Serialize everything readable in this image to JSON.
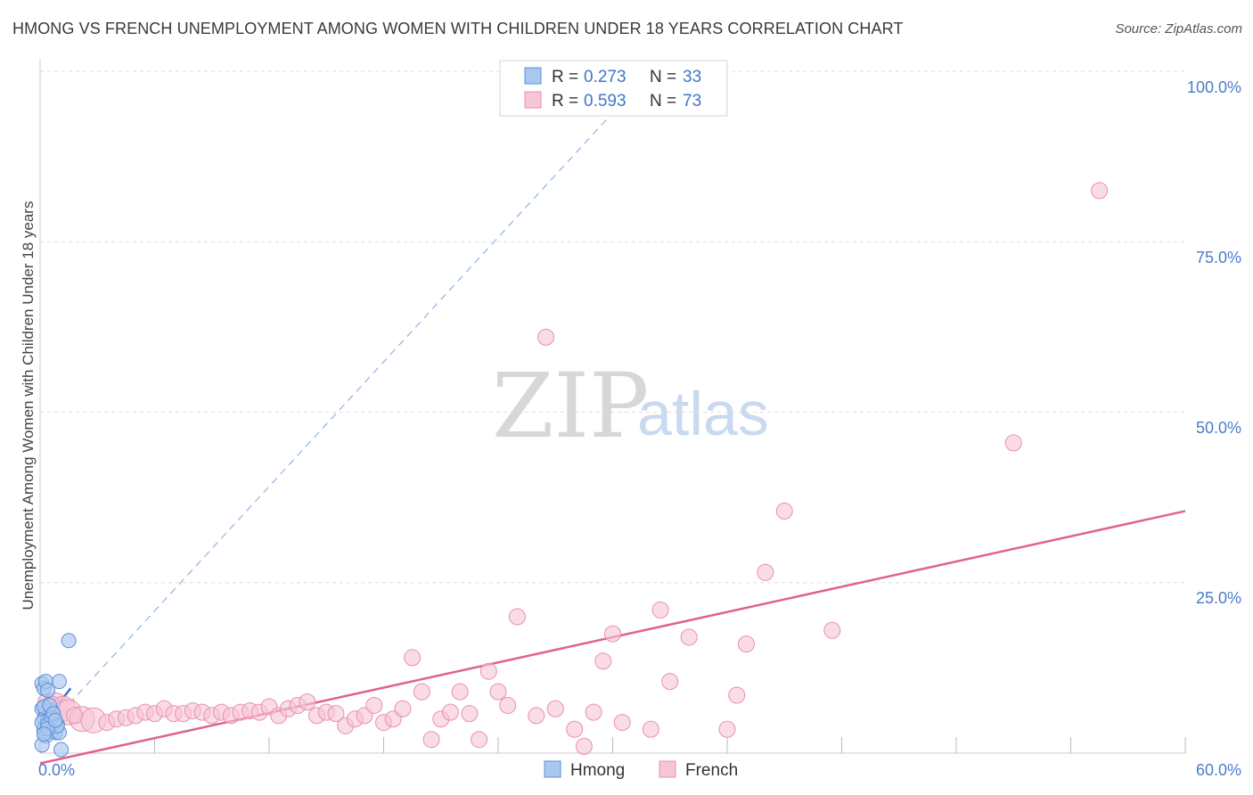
{
  "title": "HMONG VS FRENCH UNEMPLOYMENT AMONG WOMEN WITH CHILDREN UNDER 18 YEARS CORRELATION CHART",
  "source": "Source: ZipAtlas.com",
  "watermark": {
    "zip": "ZIP",
    "atlas": "atlas"
  },
  "legend": {
    "r_label": "R =",
    "n_label": "N =",
    "rows": [
      {
        "series": "Hmong",
        "r": "0.273",
        "n": "33"
      },
      {
        "series": "French",
        "r": "0.593",
        "n": "73"
      }
    ]
  },
  "colors": {
    "hmong_fill": "#a9c8f0",
    "hmong_stroke": "#5b8fd6",
    "hmong_line": "#4a72c8",
    "french_fill": "#f7c5d5",
    "french_stroke": "#e890ae",
    "french_line": "#e0628c",
    "grid": "#dddddd",
    "tick_text": "#4a7cc9"
  },
  "chart_data": {
    "type": "scatter",
    "title": "HMONG VS FRENCH UNEMPLOYMENT AMONG WOMEN WITH CHILDREN UNDER 18 YEARS CORRELATION CHART",
    "xlabel": "",
    "ylabel": "Unemployment Among Women with Children Under 18 years",
    "xlim": [
      0,
      60
    ],
    "ylim": [
      0,
      100
    ],
    "x_tick_labels": [
      "0.0%",
      "60.0%"
    ],
    "y_tick_labels": [
      "100.0%",
      "75.0%",
      "50.0%",
      "25.0%"
    ],
    "y_ticks": [
      100,
      75,
      50,
      25
    ],
    "grid": true,
    "series": [
      {
        "name": "Hmong",
        "r": 0.273,
        "n": 33,
        "trend_solid": [
          [
            0.2,
            4.5
          ],
          [
            1.6,
            9.5
          ]
        ],
        "trend_dashed": [
          [
            0.2,
            3.2
          ],
          [
            32.0,
            100.0
          ]
        ],
        "points": [
          [
            0.1,
            10.2
          ],
          [
            0.2,
            9.5
          ],
          [
            0.3,
            10.5
          ],
          [
            0.4,
            9.2
          ],
          [
            1.0,
            10.5
          ],
          [
            1.5,
            16.5
          ],
          [
            0.1,
            6.5
          ],
          [
            0.3,
            6.0
          ],
          [
            0.5,
            5.5
          ],
          [
            0.6,
            6.2
          ],
          [
            0.2,
            5.0
          ],
          [
            0.4,
            4.8
          ],
          [
            0.7,
            4.5
          ],
          [
            0.9,
            4.2
          ],
          [
            0.3,
            4.0
          ],
          [
            0.5,
            3.8
          ],
          [
            0.2,
            3.5
          ],
          [
            0.6,
            3.2
          ],
          [
            0.8,
            3.0
          ],
          [
            1.0,
            3.0
          ],
          [
            0.1,
            4.5
          ],
          [
            0.4,
            4.2
          ],
          [
            0.6,
            5.2
          ],
          [
            0.9,
            4.0
          ],
          [
            0.3,
            2.5
          ],
          [
            0.1,
            1.2
          ],
          [
            1.1,
            0.5
          ],
          [
            0.2,
            6.8
          ],
          [
            0.5,
            7.0
          ],
          [
            0.7,
            5.8
          ],
          [
            0.4,
            3.6
          ],
          [
            0.2,
            2.8
          ],
          [
            0.8,
            4.8
          ]
        ]
      },
      {
        "name": "French",
        "r": 0.593,
        "n": 73,
        "trend": [
          [
            0.0,
            -1.5
          ],
          [
            60.0,
            35.5
          ]
        ],
        "points": [
          [
            0.3,
            7.5
          ],
          [
            0.8,
            7.0
          ],
          [
            1.2,
            6.5
          ],
          [
            1.5,
            6.0
          ],
          [
            2.2,
            5.0
          ],
          [
            2.8,
            4.8
          ],
          [
            3.5,
            4.5
          ],
          [
            4.0,
            5.0
          ],
          [
            4.5,
            5.2
          ],
          [
            5.0,
            5.5
          ],
          [
            5.5,
            6.0
          ],
          [
            6.0,
            5.8
          ],
          [
            6.5,
            6.5
          ],
          [
            7.0,
            5.8
          ],
          [
            7.5,
            5.8
          ],
          [
            8.0,
            6.2
          ],
          [
            8.5,
            6.0
          ],
          [
            9.0,
            5.5
          ],
          [
            9.5,
            6.0
          ],
          [
            10.0,
            5.5
          ],
          [
            10.5,
            6.0
          ],
          [
            11.0,
            6.2
          ],
          [
            11.5,
            6.0
          ],
          [
            12.0,
            6.8
          ],
          [
            12.5,
            5.5
          ],
          [
            13.0,
            6.5
          ],
          [
            13.5,
            7.0
          ],
          [
            14.0,
            7.5
          ],
          [
            14.5,
            5.5
          ],
          [
            15.0,
            6.0
          ],
          [
            15.5,
            5.8
          ],
          [
            16.0,
            4.0
          ],
          [
            16.5,
            5.0
          ],
          [
            17.0,
            5.5
          ],
          [
            17.5,
            7.0
          ],
          [
            18.0,
            4.5
          ],
          [
            18.5,
            5.0
          ],
          [
            19.0,
            6.5
          ],
          [
            19.5,
            14.0
          ],
          [
            20.0,
            9.0
          ],
          [
            20.5,
            2.0
          ],
          [
            21.0,
            5.0
          ],
          [
            21.5,
            6.0
          ],
          [
            22.0,
            9.0
          ],
          [
            22.5,
            5.8
          ],
          [
            23.0,
            2.0
          ],
          [
            23.5,
            12.0
          ],
          [
            24.0,
            9.0
          ],
          [
            24.5,
            7.0
          ],
          [
            25.0,
            20.0
          ],
          [
            26.0,
            5.5
          ],
          [
            26.5,
            61.0
          ],
          [
            27.0,
            6.5
          ],
          [
            28.0,
            3.5
          ],
          [
            28.5,
            1.0
          ],
          [
            29.0,
            6.0
          ],
          [
            29.5,
            13.5
          ],
          [
            30.0,
            17.5
          ],
          [
            30.5,
            4.5
          ],
          [
            32.0,
            3.5
          ],
          [
            32.5,
            21.0
          ],
          [
            33.0,
            10.5
          ],
          [
            34.0,
            17.0
          ],
          [
            36.0,
            3.5
          ],
          [
            36.5,
            8.5
          ],
          [
            37.0,
            16.0
          ],
          [
            38.0,
            26.5
          ],
          [
            39.0,
            35.5
          ],
          [
            41.5,
            18.0
          ],
          [
            51.0,
            45.5
          ],
          [
            55.5,
            82.5
          ],
          [
            0.6,
            7.2
          ],
          [
            1.8,
            5.5
          ]
        ]
      }
    ]
  }
}
